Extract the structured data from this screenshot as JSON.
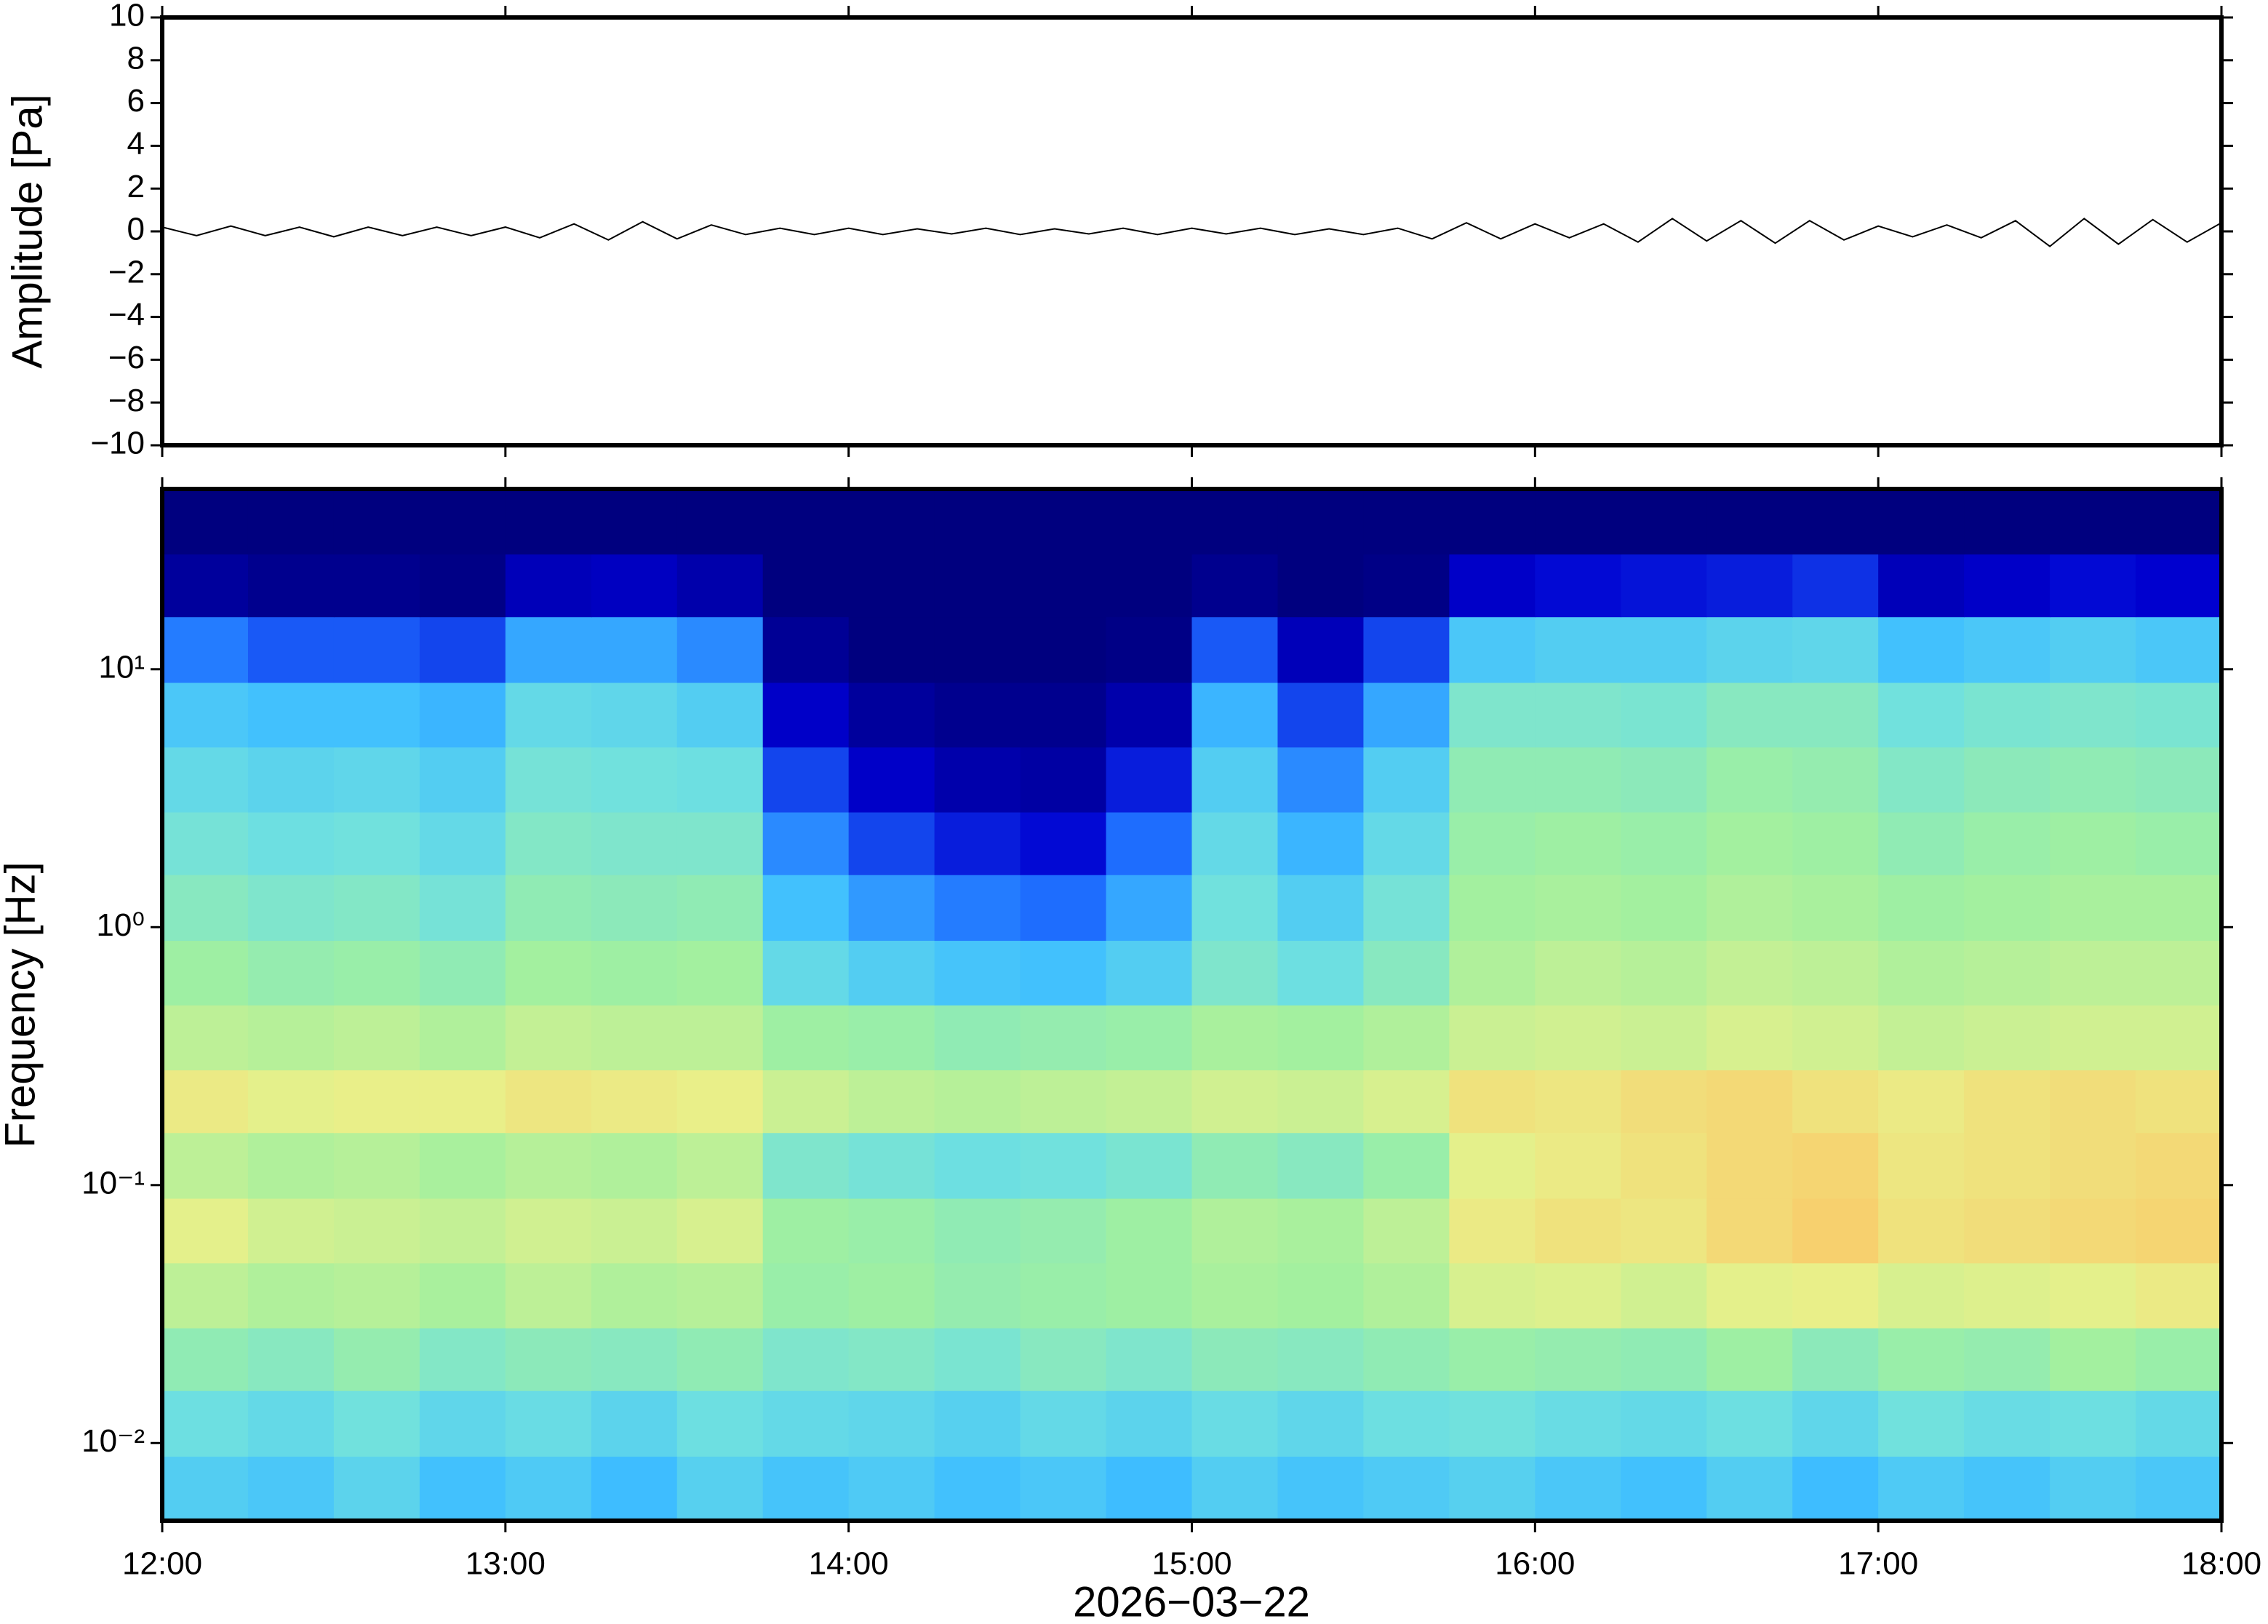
{
  "chart_data": [
    {
      "type": "line",
      "ylabel": "Amplitude [Pa]",
      "color": "#000000",
      "xlim": [
        12,
        18
      ],
      "ylim": [
        -10,
        10
      ],
      "yticks": [
        {
          "value": -10,
          "label": "−10"
        },
        {
          "value": -8,
          "label": "−8"
        },
        {
          "value": -6,
          "label": "−6"
        },
        {
          "value": -4,
          "label": "−4"
        },
        {
          "value": -2,
          "label": "−2"
        },
        0,
        2,
        4,
        6,
        8,
        10
      ],
      "x": [
        12,
        12.1,
        12.2,
        12.3,
        12.4,
        12.5,
        12.6,
        12.7,
        12.8,
        12.9,
        13,
        13.1,
        13.2,
        13.3,
        13.4,
        13.5,
        13.6,
        13.7,
        13.8,
        13.9,
        14,
        14.1,
        14.2,
        14.3,
        14.4,
        14.5,
        14.6,
        14.7,
        14.8,
        14.9,
        15,
        15.1,
        15.2,
        15.3,
        15.4,
        15.5,
        15.6,
        15.7,
        15.8,
        15.9,
        16,
        16.1,
        16.2,
        16.3,
        16.4,
        16.5,
        16.6,
        16.7,
        16.8,
        16.9,
        17,
        17.1,
        17.2,
        17.3,
        17.4,
        17.5,
        17.6,
        17.7,
        17.8,
        17.9,
        18
      ],
      "values": [
        0.2,
        -0.2,
        0.25,
        -0.2,
        0.2,
        -0.25,
        0.2,
        -0.2,
        0.2,
        -0.2,
        0.2,
        -0.3,
        0.35,
        -0.4,
        0.45,
        -0.35,
        0.3,
        -0.15,
        0.15,
        -0.15,
        0.15,
        -0.15,
        0.12,
        -0.12,
        0.15,
        -0.15,
        0.12,
        -0.12,
        0.15,
        -0.15,
        0.15,
        -0.12,
        0.15,
        -0.15,
        0.12,
        -0.15,
        0.15,
        -0.35,
        0.4,
        -0.35,
        0.35,
        -0.3,
        0.35,
        -0.5,
        0.6,
        -0.45,
        0.5,
        -0.55,
        0.5,
        -0.4,
        0.25,
        -0.25,
        0.3,
        -0.3,
        0.5,
        -0.7,
        0.6,
        -0.6,
        0.55,
        -0.5,
        0.4
      ]
    },
    {
      "type": "heatmap",
      "ylabel": "Frequency [Hz]",
      "xlabel": "2026−03−22",
      "ylog": true,
      "xlim": [
        12,
        18
      ],
      "xticks": [
        {
          "value": 12,
          "label": "12:00"
        },
        {
          "value": 13,
          "label": "13:00"
        },
        {
          "value": 14,
          "label": "14:00"
        },
        {
          "value": 15,
          "label": "15:00"
        },
        {
          "value": 16,
          "label": "16:00"
        },
        {
          "value": 17,
          "label": "17:00"
        },
        {
          "value": 18,
          "label": "18:00"
        }
      ],
      "ylim": [
        0.005,
        50
      ],
      "yticks": [
        {
          "value": 0.01,
          "label": "10⁻²"
        },
        {
          "value": 0.1,
          "label": "10⁻¹"
        },
        {
          "value": 1,
          "label": "10⁰"
        },
        {
          "value": 10,
          "label": "10¹"
        }
      ],
      "xbins": [
        12,
        12.25,
        12.5,
        12.75,
        13,
        13.25,
        13.5,
        13.75,
        14,
        14.25,
        14.5,
        14.75,
        15,
        15.25,
        15.5,
        15.75,
        16,
        16.25,
        16.5,
        16.75,
        17,
        17.25,
        17.5,
        17.75,
        18
      ],
      "ybins": [
        0.005,
        0.0089,
        0.016,
        0.028,
        0.05,
        0.089,
        0.16,
        0.28,
        0.5,
        0.89,
        1.6,
        2.8,
        5,
        8.9,
        16,
        28,
        50
      ],
      "zlim": [
        0,
        100
      ],
      "colors": [
        "#00007f",
        "#0000d0",
        "#1f6fff",
        "#3fbfff",
        "#6fe0e0",
        "#a0f0a0",
        "#e8f08a",
        "#ffc060",
        "#ff7030",
        "#d00000"
      ],
      "z": [
        [
          38,
          36,
          40,
          34,
          37,
          33,
          39,
          35,
          37,
          34,
          36,
          33,
          38,
          35,
          37,
          39,
          36,
          34,
          38,
          33,
          37,
          35,
          38,
          36
        ],
        [
          44,
          42,
          45,
          41,
          43,
          40,
          44,
          42,
          41,
          39,
          42,
          40,
          43,
          41,
          44,
          45,
          43,
          42,
          44,
          41,
          45,
          43,
          44,
          42
        ],
        [
          52,
          50,
          53,
          49,
          51,
          50,
          52,
          48,
          49,
          47,
          50,
          48,
          51,
          50,
          52,
          54,
          53,
          52,
          55,
          51,
          54,
          53,
          56,
          54
        ],
        [
          60,
          58,
          59,
          57,
          60,
          58,
          59,
          54,
          55,
          53,
          54,
          55,
          57,
          56,
          58,
          64,
          65,
          63,
          66,
          67,
          64,
          65,
          66,
          68
        ],
        [
          66,
          63,
          62,
          61,
          63,
          62,
          64,
          55,
          54,
          52,
          53,
          55,
          58,
          57,
          60,
          68,
          70,
          69,
          72,
          74,
          70,
          71,
          72,
          73
        ],
        [
          60,
          58,
          59,
          57,
          59,
          58,
          60,
          48,
          46,
          44,
          45,
          47,
          52,
          50,
          54,
          66,
          68,
          70,
          72,
          73,
          69,
          70,
          71,
          72
        ],
        [
          68,
          66,
          67,
          67,
          69,
          68,
          67,
          62,
          60,
          59,
          60,
          61,
          63,
          62,
          64,
          70,
          69,
          71,
          72,
          70,
          68,
          70,
          71,
          70
        ],
        [
          60,
          59,
          60,
          58,
          61,
          60,
          60,
          55,
          54,
          52,
          53,
          54,
          57,
          56,
          58,
          62,
          63,
          62,
          64,
          63,
          61,
          62,
          63,
          63
        ],
        [
          55,
          53,
          54,
          52,
          56,
          55,
          56,
          42,
          38,
          35,
          34,
          38,
          48,
          44,
          50,
          58,
          60,
          59,
          61,
          60,
          58,
          59,
          60,
          60
        ],
        [
          50,
          48,
          49,
          46,
          52,
          51,
          52,
          34,
          28,
          24,
          22,
          30,
          45,
          38,
          46,
          56,
          57,
          56,
          58,
          57,
          55,
          56,
          57,
          57
        ],
        [
          46,
          44,
          45,
          42,
          49,
          48,
          48,
          26,
          18,
          14,
          12,
          22,
          42,
          32,
          42,
          54,
          55,
          54,
          56,
          55,
          52,
          54,
          55,
          54
        ],
        [
          42,
          40,
          41,
          38,
          46,
          45,
          44,
          18,
          10,
          6,
          5,
          14,
          38,
          26,
          38,
          52,
          52,
          51,
          54,
          53,
          49,
          51,
          52,
          51
        ],
        [
          36,
          34,
          34,
          32,
          42,
          41,
          38,
          10,
          4,
          2,
          2,
          6,
          32,
          18,
          30,
          48,
          48,
          47,
          50,
          50,
          45,
          47,
          48,
          47
        ],
        [
          24,
          20,
          20,
          18,
          30,
          30,
          26,
          3,
          0,
          0,
          0,
          1,
          20,
          8,
          18,
          36,
          38,
          38,
          40,
          41,
          34,
          36,
          38,
          36
        ],
        [
          4,
          2,
          2,
          1,
          8,
          9,
          6,
          0,
          0,
          0,
          0,
          0,
          2,
          0,
          1,
          10,
          12,
          13,
          14,
          16,
          8,
          10,
          12,
          11
        ],
        [
          0,
          0,
          0,
          0,
          0,
          0,
          0,
          0,
          0,
          0,
          0,
          0,
          0,
          0,
          0,
          0,
          0,
          0,
          0,
          0,
          0,
          0,
          0,
          0
        ]
      ]
    }
  ]
}
